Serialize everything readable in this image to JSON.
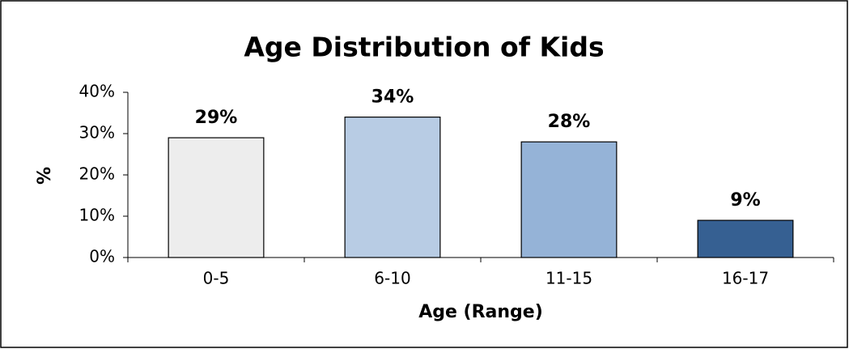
{
  "chart_data": {
    "type": "bar",
    "title": "Age Distribution of Kids",
    "x_label": "Age (Range)",
    "y_label": "%",
    "categories": [
      "0-5",
      "6-10",
      "11-15",
      "16-17"
    ],
    "values": [
      29,
      34,
      28,
      9
    ],
    "value_labels": [
      "29%",
      "34%",
      "28%",
      "9%"
    ],
    "colors": [
      "#ededed",
      "#b8cce4",
      "#95b3d7",
      "#366092"
    ],
    "ylim": [
      0,
      40
    ],
    "yticks": [
      {
        "value": 0,
        "label": "0%"
      },
      {
        "value": 10,
        "label": "10%"
      },
      {
        "value": 20,
        "label": "20%"
      },
      {
        "value": 30,
        "label": "30%"
      },
      {
        "value": 40,
        "label": "40%"
      }
    ],
    "grid": false
  }
}
